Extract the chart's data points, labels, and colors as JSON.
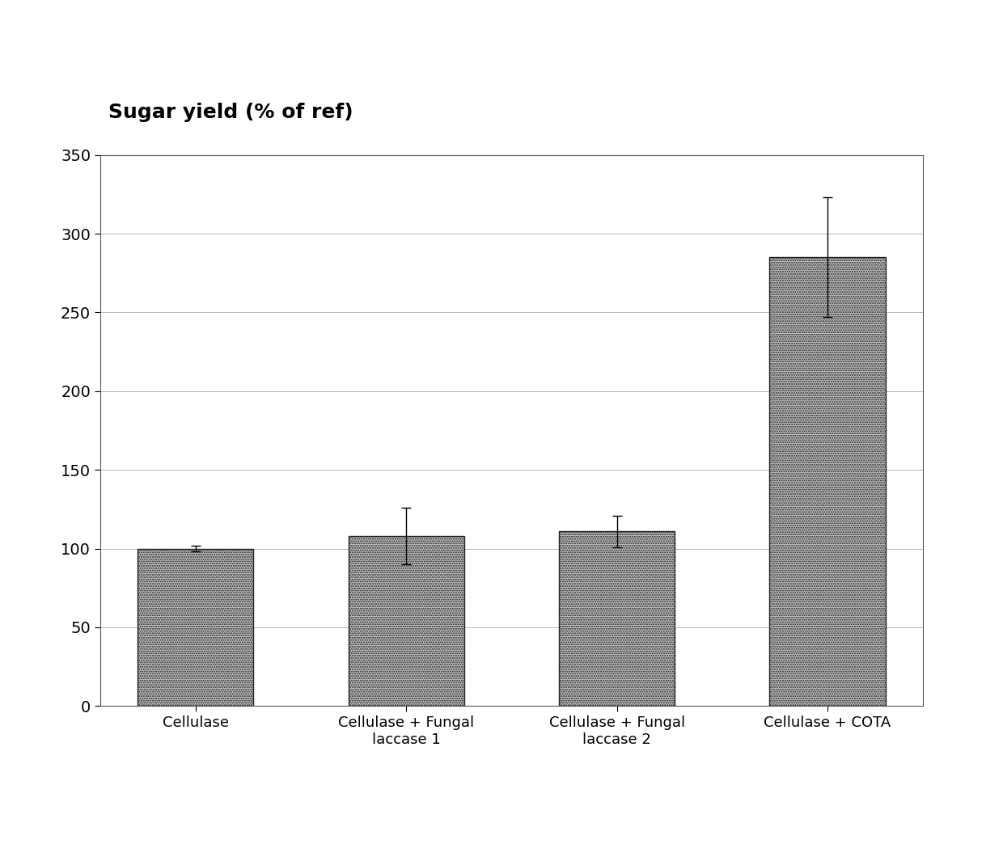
{
  "categories": [
    "Cellulase",
    "Cellulase + Fungal\nlaccase 1",
    "Cellulase + Fungal\nlaccase 2",
    "Cellulase + COTA"
  ],
  "values": [
    100,
    108,
    111,
    285
  ],
  "errors": [
    2,
    18,
    10,
    38
  ],
  "bar_color": "#c0c0c0",
  "bar_edgecolor": "#222222",
  "title": "Sugar yield (% of ref)",
  "ylim": [
    0,
    350
  ],
  "yticks": [
    0,
    50,
    100,
    150,
    200,
    250,
    300,
    350
  ],
  "grid_color": "#aaaaaa",
  "background_color": "#ffffff",
  "title_fontsize": 18,
  "tick_fontsize": 14,
  "label_fontsize": 13
}
